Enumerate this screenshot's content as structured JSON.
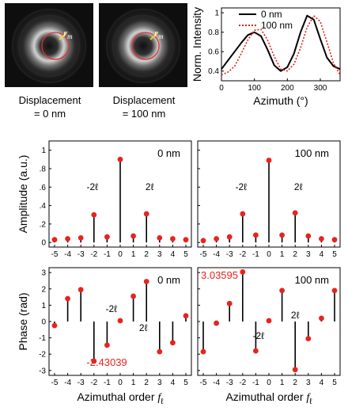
{
  "figure": {
    "caption_left": [
      "Displacement",
      "= 0 nm"
    ],
    "caption_right": [
      "Displacement",
      "= 100 nm"
    ],
    "image_label": "r",
    "image_label_sub": "m"
  },
  "chart_data": [
    {
      "type": "line",
      "id": "intensity",
      "xlabel": "Azimuth (°)",
      "ylabel": "Norm. Intensity",
      "xlim": [
        0,
        360
      ],
      "ylim": [
        0.3,
        1.05
      ],
      "xticks": [
        0,
        100,
        200,
        300
      ],
      "yticks": [
        0.4,
        0.6,
        0.8,
        1.0
      ],
      "ytick_labels": [
        "0.4",
        "0.6",
        "0.8",
        "1"
      ],
      "legend_position": "top",
      "series": [
        {
          "name": "0 nm",
          "color": "#000000",
          "style": "solid",
          "x": [
            0,
            20,
            40,
            60,
            80,
            100,
            120,
            140,
            160,
            180,
            200,
            220,
            240,
            260,
            280,
            300,
            320,
            340,
            360
          ],
          "y": [
            0.42,
            0.51,
            0.6,
            0.69,
            0.77,
            0.8,
            0.76,
            0.62,
            0.46,
            0.4,
            0.44,
            0.58,
            0.8,
            0.97,
            0.93,
            0.73,
            0.54,
            0.45,
            0.42
          ]
        },
        {
          "name": "100 nm",
          "color": "#e02020",
          "style": "dotted",
          "x": [
            0,
            20,
            40,
            60,
            80,
            100,
            120,
            140,
            160,
            180,
            200,
            220,
            240,
            260,
            280,
            300,
            320,
            340,
            360
          ],
          "y": [
            0.36,
            0.39,
            0.45,
            0.58,
            0.72,
            0.82,
            0.83,
            0.72,
            0.55,
            0.42,
            0.4,
            0.47,
            0.64,
            0.85,
            0.97,
            0.91,
            0.7,
            0.48,
            0.36
          ]
        }
      ]
    },
    {
      "type": "stem",
      "id": "amp0",
      "label": "0 nm",
      "ylabel": "Amplitude (a.u.)",
      "ylim": [
        -0.05,
        1.1
      ],
      "yticks": [
        0,
        0.2,
        0.4,
        0.6,
        0.8,
        1.0
      ],
      "ytick_labels": [
        "0",
        ".2",
        ".4",
        ".6",
        ".8",
        "1"
      ],
      "categories": [
        -5,
        -4,
        -3,
        -2,
        -1,
        0,
        1,
        2,
        3,
        4,
        5
      ],
      "xtick_labels": [
        "-5",
        "-4",
        "-3",
        "-2",
        "-1",
        "0",
        "1",
        "2",
        "3",
        "4",
        "5"
      ],
      "values": [
        0.03,
        0.04,
        0.05,
        0.3,
        0.06,
        0.9,
        0.07,
        0.31,
        0.05,
        0.04,
        0.03
      ],
      "annotations": [
        {
          "text": "-2ℓ",
          "at": -2
        },
        {
          "text": "2ℓ",
          "at": 2
        }
      ]
    },
    {
      "type": "stem",
      "id": "amp100",
      "label": "100 nm",
      "ylim": [
        -0.05,
        1.1
      ],
      "yticks": [
        0,
        0.2,
        0.4,
        0.6,
        0.8,
        1.0
      ],
      "categories": [
        -5,
        -4,
        -3,
        -2,
        -1,
        0,
        1,
        2,
        3,
        4,
        5
      ],
      "xtick_labels": [
        "-5",
        "-4",
        "-3",
        "-2",
        "-1",
        "0",
        "1",
        "2",
        "3",
        "4",
        "5"
      ],
      "values": [
        0.02,
        0.04,
        0.06,
        0.31,
        0.08,
        0.89,
        0.08,
        0.32,
        0.07,
        0.04,
        0.03
      ],
      "annotations": [
        {
          "text": "-2ℓ",
          "at": -2
        },
        {
          "text": "2ℓ",
          "at": 2
        }
      ]
    },
    {
      "type": "stem",
      "id": "phase0",
      "label": "0 nm",
      "ylabel": "Phase (rad)",
      "xlabel": "Azimuthal order",
      "xlabel_symbol": "f",
      "xlabel_symbol_sub": "ℓ",
      "ylim": [
        -3.3,
        3.3
      ],
      "yticks": [
        -3,
        -2,
        -1,
        0,
        1,
        2,
        3
      ],
      "ytick_labels": [
        "-3",
        "-2",
        "-1",
        "0",
        "1",
        "2",
        "3"
      ],
      "categories": [
        -5,
        -4,
        -3,
        -2,
        -1,
        0,
        1,
        2,
        3,
        4,
        5
      ],
      "xtick_labels": [
        "-5",
        "-4",
        "-3",
        "-2",
        "-1",
        "0",
        "1",
        "2",
        "3",
        "4",
        "5"
      ],
      "values": [
        -0.25,
        1.4,
        1.95,
        -2.43039,
        -1.45,
        0.05,
        1.55,
        2.45,
        -1.85,
        -1.3,
        0.35
      ],
      "value_label": "-2.43039",
      "annotations": [
        {
          "text": "-2ℓ",
          "at": -2
        },
        {
          "text": "2ℓ",
          "at": 2
        }
      ]
    },
    {
      "type": "stem",
      "id": "phase100",
      "label": "100 nm",
      "xlabel": "Azimuthal order",
      "xlabel_symbol": "f",
      "xlabel_symbol_sub": "ℓ",
      "ylim": [
        -3.3,
        3.3
      ],
      "yticks": [
        -3,
        -2,
        -1,
        0,
        1,
        2,
        3
      ],
      "categories": [
        -5,
        -4,
        -3,
        -2,
        -1,
        0,
        1,
        2,
        3,
        4,
        5
      ],
      "xtick_labels": [
        "-5",
        "-4",
        "-3",
        "-2",
        "-1",
        "0",
        "1",
        "2",
        "3",
        "4",
        "5"
      ],
      "values": [
        -1.85,
        -0.1,
        1.1,
        3.03595,
        -1.8,
        0.05,
        1.9,
        -2.95,
        -1.05,
        0.2,
        1.9
      ],
      "value_label": "3.03595",
      "annotations": [
        {
          "text": "-2ℓ",
          "at": -2
        },
        {
          "text": "2ℓ",
          "at": 2
        }
      ]
    }
  ]
}
